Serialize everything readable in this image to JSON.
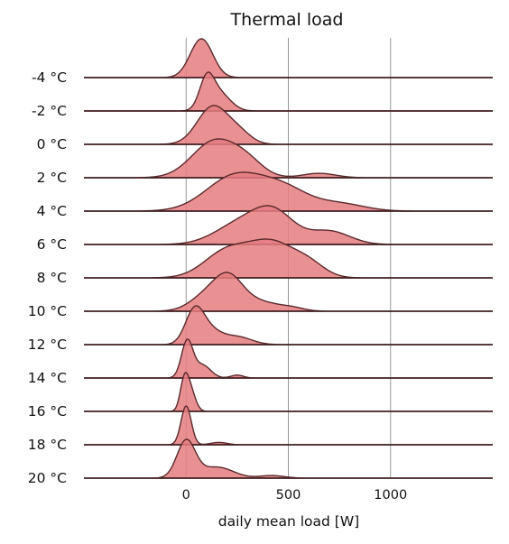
{
  "chart_data": {
    "type": "ridgeline",
    "title": "Thermal load",
    "xlabel": "daily mean load [W]",
    "xlim": [
      -500,
      1500
    ],
    "xticks": [
      0,
      500,
      1000
    ],
    "grid": "vertical",
    "fill_color": "#e57d80",
    "line_color": "#5b2a2c",
    "baseline_color": "#c73b40",
    "series": [
      {
        "name": "-4 °C",
        "peaks": [
          [
            75,
            55,
            1.0
          ]
        ]
      },
      {
        "name": "-2 °C",
        "peaks": [
          [
            100,
            35,
            0.85
          ],
          [
            160,
            55,
            0.55
          ]
        ]
      },
      {
        "name": "0 °C",
        "peaks": [
          [
            130,
            75,
            0.9
          ],
          [
            260,
            60,
            0.25
          ]
        ]
      },
      {
        "name": "2 °C",
        "peaks": [
          [
            140,
            110,
            1.0
          ],
          [
            300,
            80,
            0.35
          ],
          [
            650,
            80,
            0.12
          ]
        ]
      },
      {
        "name": "4 °C",
        "peaks": [
          [
            240,
            140,
            0.95
          ],
          [
            480,
            120,
            0.55
          ],
          [
            750,
            120,
            0.2
          ]
        ]
      },
      {
        "name": "6 °C",
        "peaks": [
          [
            260,
            120,
            0.6
          ],
          [
            430,
            100,
            0.9
          ],
          [
            700,
            100,
            0.4
          ]
        ]
      },
      {
        "name": "8 °C",
        "peaks": [
          [
            200,
            110,
            0.75
          ],
          [
            420,
            110,
            0.95
          ],
          [
            600,
            80,
            0.35
          ]
        ]
      },
      {
        "name": "10 °C",
        "peaks": [
          [
            100,
            80,
            0.5
          ],
          [
            210,
            70,
            1.0
          ],
          [
            360,
            90,
            0.3
          ],
          [
            520,
            60,
            0.1
          ]
        ]
      },
      {
        "name": "12 °C",
        "peaks": [
          [
            40,
            45,
            1.0
          ],
          [
            110,
            60,
            0.45
          ],
          [
            250,
            70,
            0.25
          ]
        ]
      },
      {
        "name": "14 °C",
        "peaks": [
          [
            5,
            28,
            1.0
          ],
          [
            80,
            40,
            0.35
          ],
          [
            250,
            30,
            0.08
          ]
        ]
      },
      {
        "name": "16 °C",
        "peaks": [
          [
            -10,
            20,
            1.0
          ],
          [
            20,
            25,
            0.8
          ]
        ]
      },
      {
        "name": "18 °C",
        "peaks": [
          [
            0,
            25,
            1.0
          ],
          [
            160,
            40,
            0.06
          ]
        ]
      },
      {
        "name": "20 °C",
        "peaks": [
          [
            0,
            45,
            1.0
          ],
          [
            150,
            80,
            0.3
          ],
          [
            420,
            60,
            0.07
          ]
        ]
      }
    ]
  }
}
